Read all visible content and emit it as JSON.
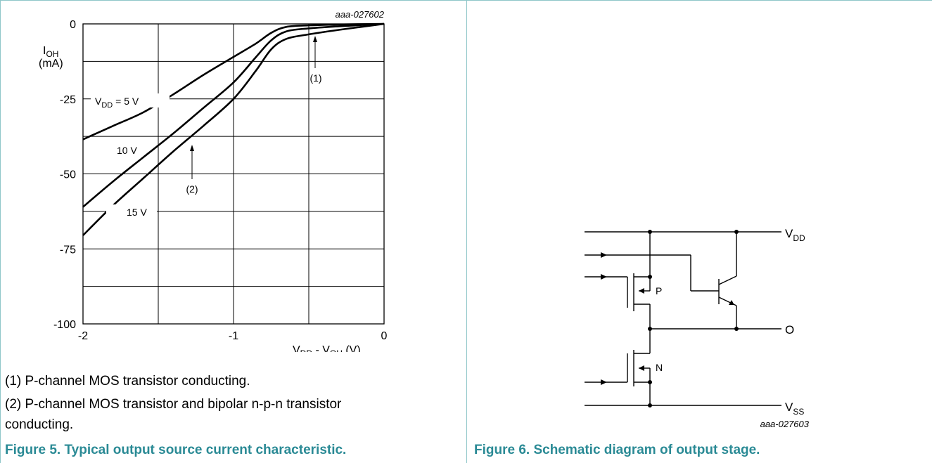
{
  "figure5": {
    "code": "aaa-027602",
    "notes": [
      "(1) P-channel MOS transistor conducting.",
      "(2) P-channel MOS transistor and bipolar n-p-n transistor conducting."
    ],
    "note2_line1": "(2) P-channel MOS transistor and bipolar n-p-n transistor",
    "note2_line2": "conducting.",
    "caption": "Figure 5.  Typical output source current characteristic."
  },
  "figure6": {
    "code": "aaa-027603",
    "caption": "Figure 6.  Schematic diagram of output stage.",
    "labels": {
      "vdd_main": "V",
      "vdd_sub": "DD",
      "out": "O",
      "vss_main": "V",
      "vss_sub": "SS",
      "p": "P",
      "n": "N"
    }
  },
  "chart_data": {
    "type": "line",
    "xlabel": "VDD - VOH (V)",
    "ylabel": "IOH (mA)",
    "xlim": [
      -2,
      0
    ],
    "ylim": [
      -100,
      0
    ],
    "x_ticks": [
      "-2",
      "-1",
      "0"
    ],
    "y_ticks": [
      "0",
      "-25",
      "-50",
      "-75",
      "-100"
    ],
    "grid": true,
    "annotations": [
      "(1)",
      "(2)"
    ],
    "series": [
      {
        "name": "VDD = 5 V",
        "x": [
          -2,
          -1.8,
          -1.6,
          -1.4,
          -1.2,
          -1.0,
          -0.85,
          -0.75,
          -0.65,
          -0.5,
          -0.3,
          0
        ],
        "y": [
          -38.5,
          -34,
          -29.5,
          -23.5,
          -17,
          -11,
          -6.5,
          -3,
          -1,
          -0.5,
          -0.2,
          0
        ]
      },
      {
        "name": "10 V",
        "x": [
          -2,
          -1.8,
          -1.6,
          -1.4,
          -1.2,
          -1.0,
          -0.85,
          -0.75,
          -0.65,
          -0.5,
          -0.3,
          0
        ],
        "y": [
          -61,
          -52.5,
          -44.5,
          -36.5,
          -28,
          -19.5,
          -11,
          -5.5,
          -2.5,
          -1.5,
          -0.8,
          0
        ]
      },
      {
        "name": "15 V",
        "x": [
          -2,
          -1.8,
          -1.6,
          -1.4,
          -1.2,
          -1.0,
          -0.85,
          -0.75,
          -0.65,
          -0.5,
          -0.3,
          0
        ],
        "y": [
          -70.5,
          -60.5,
          -51.5,
          -42.5,
          -34,
          -25,
          -15.5,
          -8.5,
          -5,
          -3.5,
          -2,
          0
        ]
      }
    ],
    "series_labels": {
      "s1_main": "V",
      "s1_sub": "DD",
      "s1_rest": " = 5 V",
      "s2": "10 V",
      "s3": "15 V"
    },
    "axis_labels": {
      "y_main": "I",
      "y_sub": "OH",
      "y_unit": "(mA)",
      "x_v1": "V",
      "x_sub1": "DD",
      "x_mid": " - V",
      "x_sub2": "OH",
      "x_unit": " (V)"
    }
  }
}
